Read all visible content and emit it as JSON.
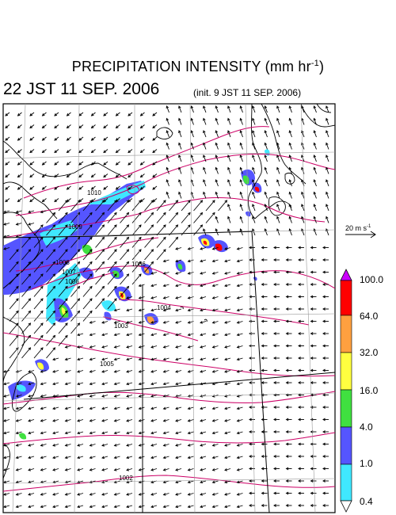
{
  "header": {
    "title_main": "PRECIPITATION INTENSITY (mm hr",
    "title_exp": "-1",
    "title_close": ")",
    "subtitle": "22 JST 11 SEP. 2006",
    "init": "(init. 9 JST 11 SEP. 2006)"
  },
  "vector_legend": {
    "label": "20 m s",
    "exp": "-1"
  },
  "colorbar": {
    "labels": [
      "100.0",
      "64.0",
      "32.0",
      "16.0",
      "4.0",
      "1.0",
      "0.4"
    ],
    "colors": [
      "#ff0000",
      "#ffa040",
      "#ffff40",
      "#40e040",
      "#5555ff",
      "#40e8ff"
    ],
    "over_color": "#cc00ff",
    "under_color": "#ffffff"
  },
  "isobars": {
    "labels": [
      "1010",
      "1009",
      "1008",
      "1007",
      "1006",
      "1006",
      "1004",
      "1003",
      "1005",
      "1002"
    ]
  },
  "colors": {
    "coast": "#000000",
    "isobar": "#cc0066",
    "grid": "#aaaaaa",
    "arrow": "#000000"
  }
}
